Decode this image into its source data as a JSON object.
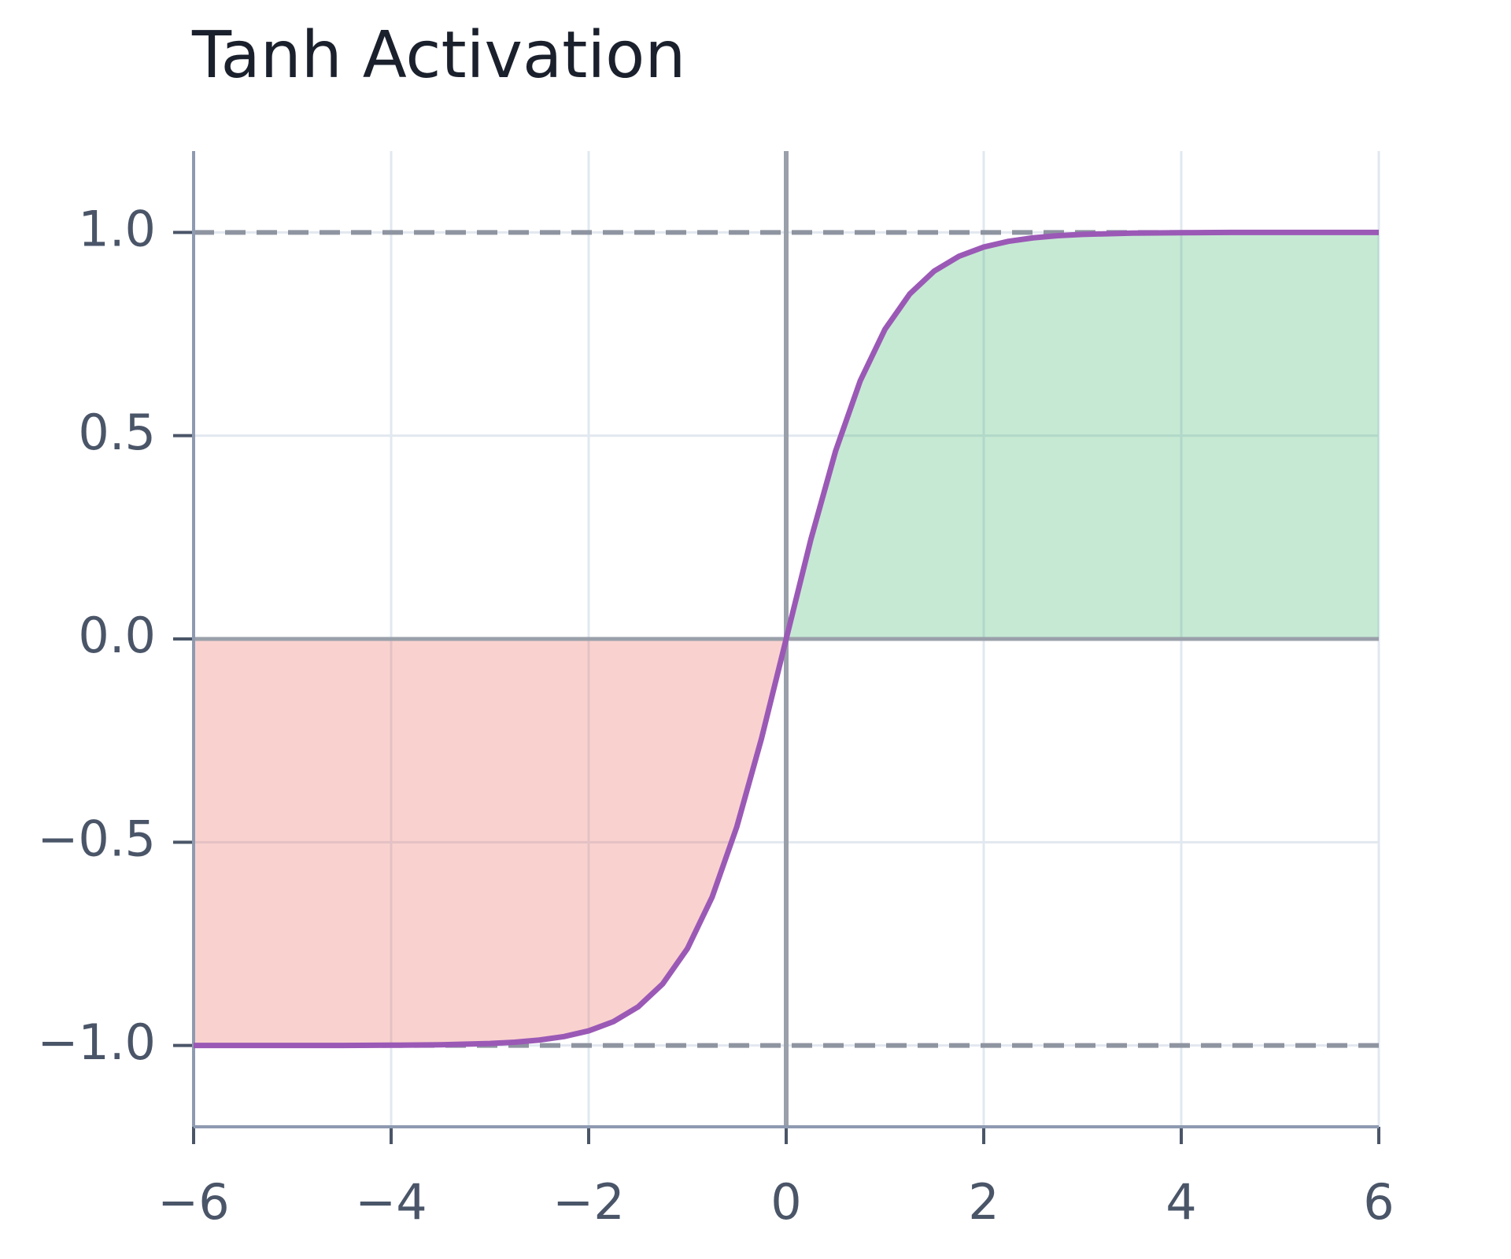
{
  "chart_data": {
    "type": "line",
    "title": "Tanh Activation",
    "x": [
      -6,
      -5.5,
      -5,
      -4.5,
      -4,
      -3.5,
      -3,
      -2.75,
      -2.5,
      -2.25,
      -2,
      -1.75,
      -1.5,
      -1.25,
      -1,
      -0.75,
      -0.5,
      -0.25,
      0,
      0.25,
      0.5,
      0.75,
      1,
      1.25,
      1.5,
      1.75,
      2,
      2.25,
      2.5,
      2.75,
      3,
      3.5,
      4,
      4.5,
      5,
      5.5,
      6
    ],
    "series": [
      {
        "color": "#9b59b6",
        "values": [
          -1,
          -1,
          -0.9999,
          -0.9998,
          -0.9993,
          -0.9982,
          -0.9951,
          -0.9919,
          -0.9866,
          -0.978,
          -0.964,
          -0.9414,
          -0.9051,
          -0.8483,
          -0.7616,
          -0.6351,
          -0.4621,
          -0.2449,
          0,
          0.2449,
          0.4621,
          0.6351,
          0.7616,
          0.8483,
          0.9051,
          0.9414,
          0.964,
          0.978,
          0.9866,
          0.9919,
          0.9951,
          0.9982,
          0.9993,
          0.9998,
          0.9999,
          1,
          1
        ]
      }
    ],
    "positive_fill": "rgba(46, 174, 96, 0.27)",
    "negative_fill": "rgba(231, 90, 76, 0.27)",
    "hlines": [
      1,
      -1
    ],
    "xlim": [
      -6,
      6
    ],
    "ylim": [
      -1.2,
      1.2
    ],
    "xticks": [
      {
        "value": -6,
        "label": "−6"
      },
      {
        "value": -4,
        "label": "−4"
      },
      {
        "value": -2,
        "label": "−2"
      },
      0,
      2,
      4,
      6
    ],
    "yticks": [
      {
        "value": 1,
        "label": "1.0"
      },
      {
        "value": 0.5,
        "label": "0.5"
      },
      {
        "value": 0,
        "label": "0.0"
      },
      {
        "value": -0.5,
        "label": "−0.5"
      },
      {
        "value": -1,
        "label": "−1.0"
      }
    ],
    "grid": true
  }
}
